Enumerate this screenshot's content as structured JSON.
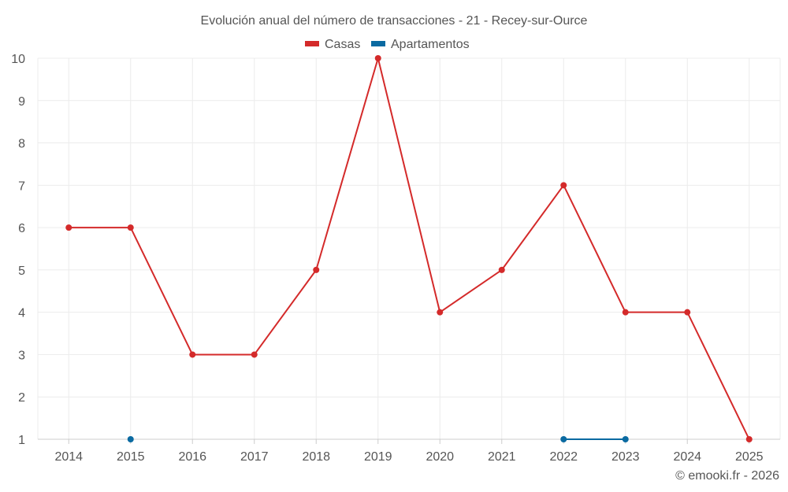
{
  "chart_data": {
    "type": "line",
    "title": "Evolución anual del número de transacciones - 21 - Recey-sur-Ource",
    "xlabel": "",
    "ylabel": "",
    "categories": [
      "2014",
      "2015",
      "2016",
      "2017",
      "2018",
      "2019",
      "2020",
      "2021",
      "2022",
      "2023",
      "2024",
      "2025"
    ],
    "yticks": [
      "1",
      "2",
      "3",
      "4",
      "5",
      "6",
      "7",
      "8",
      "9",
      "10"
    ],
    "ylim": [
      1,
      10
    ],
    "grid": true,
    "legend_position": "top-center",
    "series": [
      {
        "name": "Casas",
        "color": "#d42a2a",
        "values": [
          6,
          6,
          3,
          3,
          5,
          10,
          4,
          5,
          7,
          4,
          4,
          1
        ]
      },
      {
        "name": "Apartamentos",
        "color": "#0a6aa1",
        "values": [
          null,
          1,
          null,
          null,
          null,
          null,
          null,
          null,
          1,
          1,
          null,
          null
        ]
      }
    ]
  },
  "credit": "© emooki.fr - 2026"
}
